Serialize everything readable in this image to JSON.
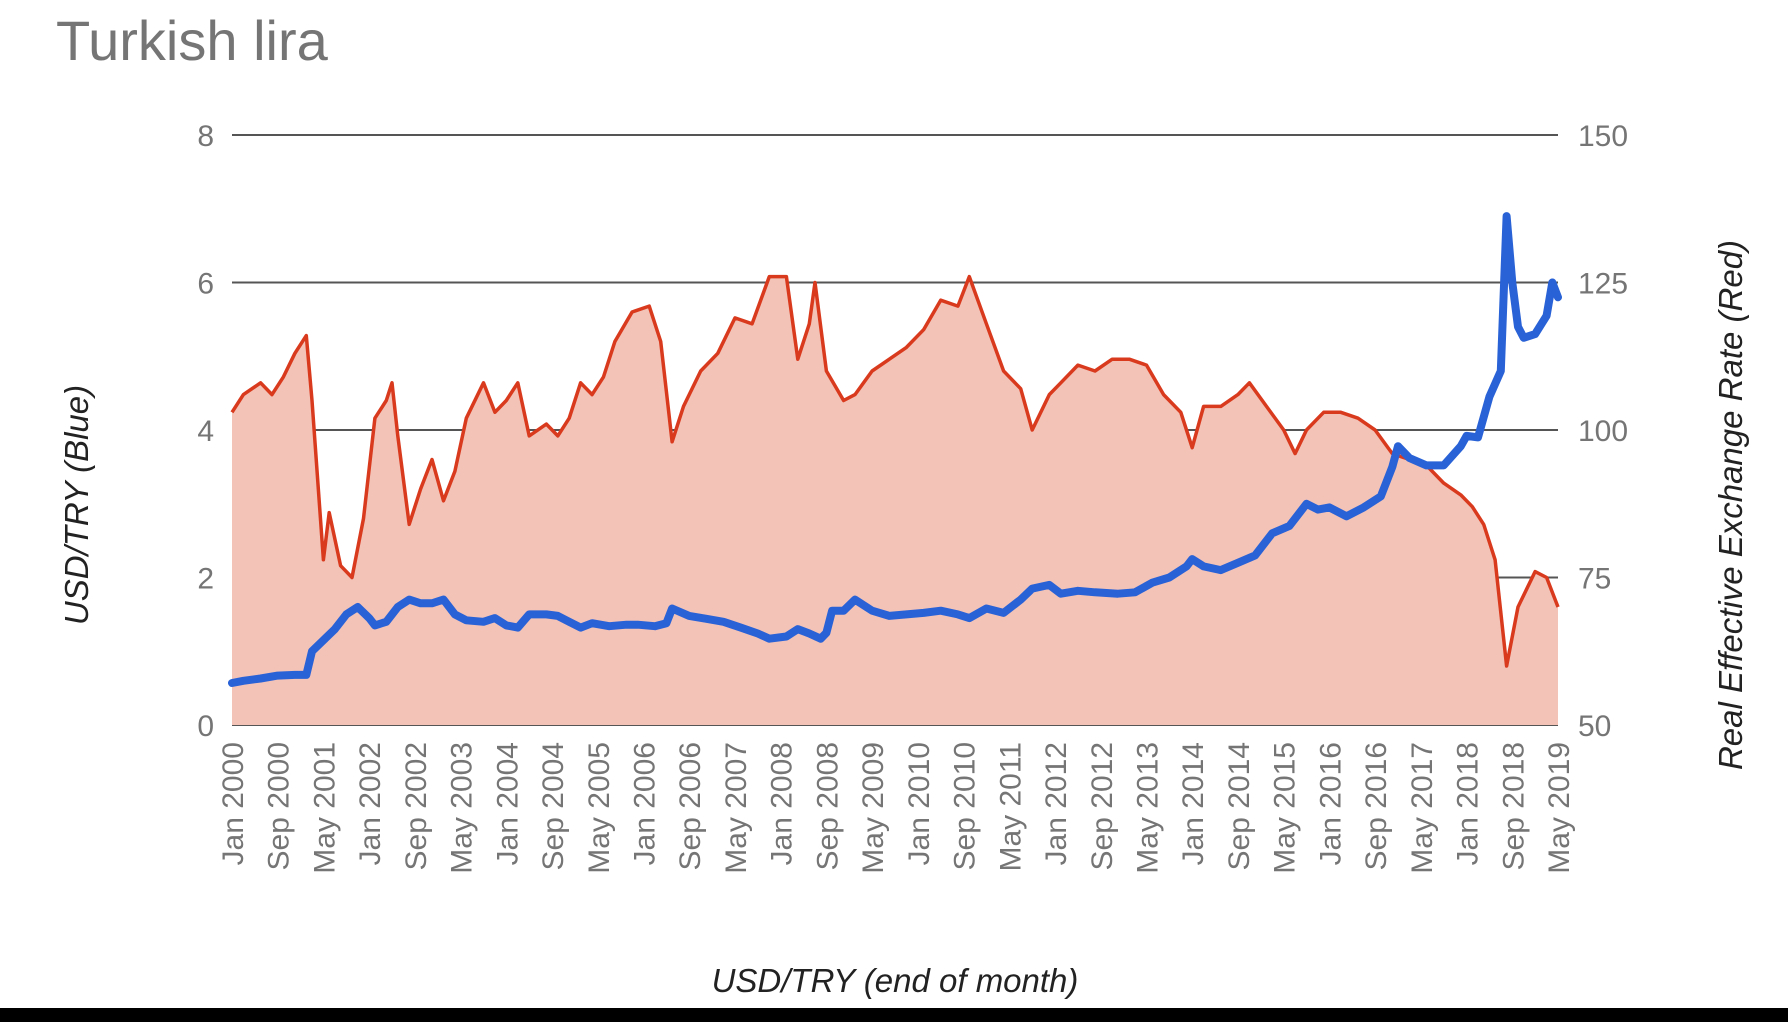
{
  "chart_data": {
    "type": "line",
    "title": "Turkish lira",
    "xlabel": "USD/TRY (end of month)",
    "ylabel_left": "USD/TRY (Blue)",
    "ylabel_right": "Real Effective Exchange Rate (Red)",
    "x_range": [
      "Jan 2000",
      "May 2019"
    ],
    "ylim_left": [
      0,
      8
    ],
    "ylim_right": [
      50,
      150
    ],
    "yticks_left": [
      "0",
      "2",
      "4",
      "6",
      "8"
    ],
    "yticks_right": [
      "50",
      "75",
      "100",
      "125",
      "150"
    ],
    "xticks": [
      "Jan 2000",
      "Sep 2000",
      "May 2001",
      "Jan 2002",
      "Sep 2002",
      "May 2003",
      "Jan 2004",
      "Sep 2004",
      "May 2005",
      "Jan 2006",
      "Sep 2006",
      "May 2007",
      "Jan 2008",
      "Sep 2008",
      "May 2009",
      "Jan 2010",
      "Sep 2010",
      "May 2011",
      "Jan 2012",
      "Sep 2012",
      "May 2013",
      "Jan 2014",
      "Sep 2014",
      "May 2015",
      "Jan 2016",
      "Sep 2016",
      "May 2017",
      "Jan 2018",
      "Sep 2018",
      "May 2019"
    ],
    "grid": true,
    "legend": "none",
    "series": [
      {
        "axis": "left",
        "color": "#2962d6",
        "style": "line-thick",
        "points": [
          [
            "2000-01",
            0.57
          ],
          [
            "2000-03",
            0.6
          ],
          [
            "2000-06",
            0.63
          ],
          [
            "2000-09",
            0.67
          ],
          [
            "2000-12",
            0.68
          ],
          [
            "2001-02",
            0.68
          ],
          [
            "2001-03",
            1.0
          ],
          [
            "2001-05",
            1.15
          ],
          [
            "2001-07",
            1.3
          ],
          [
            "2001-09",
            1.5
          ],
          [
            "2001-11",
            1.6
          ],
          [
            "2002-01",
            1.45
          ],
          [
            "2002-02",
            1.35
          ],
          [
            "2002-04",
            1.4
          ],
          [
            "2002-06",
            1.6
          ],
          [
            "2002-08",
            1.7
          ],
          [
            "2002-10",
            1.65
          ],
          [
            "2002-12",
            1.65
          ],
          [
            "2003-02",
            1.7
          ],
          [
            "2003-04",
            1.5
          ],
          [
            "2003-06",
            1.42
          ],
          [
            "2003-09",
            1.4
          ],
          [
            "2003-11",
            1.45
          ],
          [
            "2004-01",
            1.35
          ],
          [
            "2004-03",
            1.32
          ],
          [
            "2004-05",
            1.5
          ],
          [
            "2004-08",
            1.5
          ],
          [
            "2004-10",
            1.48
          ],
          [
            "2004-12",
            1.4
          ],
          [
            "2005-02",
            1.32
          ],
          [
            "2005-04",
            1.38
          ],
          [
            "2005-07",
            1.34
          ],
          [
            "2005-10",
            1.36
          ],
          [
            "2005-12",
            1.36
          ],
          [
            "2006-03",
            1.34
          ],
          [
            "2006-05",
            1.38
          ],
          [
            "2006-06",
            1.58
          ],
          [
            "2006-09",
            1.48
          ],
          [
            "2006-12",
            1.44
          ],
          [
            "2007-03",
            1.4
          ],
          [
            "2007-06",
            1.32
          ],
          [
            "2007-09",
            1.24
          ],
          [
            "2007-11",
            1.17
          ],
          [
            "2008-02",
            1.2
          ],
          [
            "2008-04",
            1.3
          ],
          [
            "2008-06",
            1.24
          ],
          [
            "2008-08",
            1.17
          ],
          [
            "2008-09",
            1.25
          ],
          [
            "2008-10",
            1.55
          ],
          [
            "2008-12",
            1.55
          ],
          [
            "2009-02",
            1.7
          ],
          [
            "2009-05",
            1.55
          ],
          [
            "2009-08",
            1.48
          ],
          [
            "2009-11",
            1.5
          ],
          [
            "2010-02",
            1.52
          ],
          [
            "2010-05",
            1.55
          ],
          [
            "2010-08",
            1.5
          ],
          [
            "2010-10",
            1.45
          ],
          [
            "2011-01",
            1.58
          ],
          [
            "2011-04",
            1.52
          ],
          [
            "2011-07",
            1.7
          ],
          [
            "2011-09",
            1.85
          ],
          [
            "2011-12",
            1.9
          ],
          [
            "2012-02",
            1.78
          ],
          [
            "2012-05",
            1.82
          ],
          [
            "2012-08",
            1.8
          ],
          [
            "2012-12",
            1.78
          ],
          [
            "2013-03",
            1.8
          ],
          [
            "2013-06",
            1.93
          ],
          [
            "2013-09",
            2.0
          ],
          [
            "2013-12",
            2.15
          ],
          [
            "2014-01",
            2.25
          ],
          [
            "2014-03",
            2.15
          ],
          [
            "2014-06",
            2.1
          ],
          [
            "2014-09",
            2.2
          ],
          [
            "2014-12",
            2.3
          ],
          [
            "2015-03",
            2.6
          ],
          [
            "2015-06",
            2.7
          ],
          [
            "2015-09",
            3.0
          ],
          [
            "2015-11",
            2.92
          ],
          [
            "2016-01",
            2.95
          ],
          [
            "2016-04",
            2.83
          ],
          [
            "2016-07",
            2.95
          ],
          [
            "2016-10",
            3.1
          ],
          [
            "2016-12",
            3.5
          ],
          [
            "2017-01",
            3.78
          ],
          [
            "2017-03",
            3.62
          ],
          [
            "2017-06",
            3.52
          ],
          [
            "2017-09",
            3.52
          ],
          [
            "2017-12",
            3.78
          ],
          [
            "2018-01",
            3.92
          ],
          [
            "2018-03",
            3.9
          ],
          [
            "2018-05",
            4.45
          ],
          [
            "2018-07",
            4.8
          ],
          [
            "2018-08",
            6.9
          ],
          [
            "2018-09",
            6.0
          ],
          [
            "2018-10",
            5.4
          ],
          [
            "2018-11",
            5.25
          ],
          [
            "2019-01",
            5.3
          ],
          [
            "2019-03",
            5.55
          ],
          [
            "2019-04",
            6.0
          ],
          [
            "2019-05",
            5.8
          ]
        ]
      },
      {
        "axis": "right",
        "color": "#d93a1e",
        "fill": "#f3c3b8",
        "style": "area",
        "points": [
          [
            "2000-01",
            103
          ],
          [
            "2000-03",
            106
          ],
          [
            "2000-06",
            108
          ],
          [
            "2000-08",
            106
          ],
          [
            "2000-10",
            109
          ],
          [
            "2000-12",
            113
          ],
          [
            "2001-02",
            116
          ],
          [
            "2001-03",
            105
          ],
          [
            "2001-05",
            78
          ],
          [
            "2001-06",
            86
          ],
          [
            "2001-08",
            77
          ],
          [
            "2001-10",
            75
          ],
          [
            "2001-12",
            85
          ],
          [
            "2002-02",
            102
          ],
          [
            "2002-04",
            105
          ],
          [
            "2002-05",
            108
          ],
          [
            "2002-06",
            99
          ],
          [
            "2002-08",
            84
          ],
          [
            "2002-10",
            90
          ],
          [
            "2002-12",
            95
          ],
          [
            "2003-02",
            88
          ],
          [
            "2003-04",
            93
          ],
          [
            "2003-06",
            102
          ],
          [
            "2003-09",
            108
          ],
          [
            "2003-11",
            103
          ],
          [
            "2004-01",
            105
          ],
          [
            "2004-03",
            108
          ],
          [
            "2004-05",
            99
          ],
          [
            "2004-08",
            101
          ],
          [
            "2004-10",
            99
          ],
          [
            "2004-12",
            102
          ],
          [
            "2005-02",
            108
          ],
          [
            "2005-04",
            106
          ],
          [
            "2005-06",
            109
          ],
          [
            "2005-08",
            115
          ],
          [
            "2005-11",
            120
          ],
          [
            "2006-02",
            121
          ],
          [
            "2006-04",
            115
          ],
          [
            "2006-06",
            98
          ],
          [
            "2006-08",
            104
          ],
          [
            "2006-11",
            110
          ],
          [
            "2007-02",
            113
          ],
          [
            "2007-05",
            119
          ],
          [
            "2007-08",
            118
          ],
          [
            "2007-11",
            126
          ],
          [
            "2008-02",
            126
          ],
          [
            "2008-04",
            112
          ],
          [
            "2008-06",
            118
          ],
          [
            "2008-07",
            125
          ],
          [
            "2008-09",
            110
          ],
          [
            "2008-12",
            105
          ],
          [
            "2009-02",
            106
          ],
          [
            "2009-05",
            110
          ],
          [
            "2009-08",
            112
          ],
          [
            "2009-11",
            114
          ],
          [
            "2010-02",
            117
          ],
          [
            "2010-05",
            122
          ],
          [
            "2010-08",
            121
          ],
          [
            "2010-10",
            126
          ],
          [
            "2011-01",
            118
          ],
          [
            "2011-04",
            110
          ],
          [
            "2011-07",
            107
          ],
          [
            "2011-09",
            100
          ],
          [
            "2011-12",
            106
          ],
          [
            "2012-02",
            108
          ],
          [
            "2012-05",
            111
          ],
          [
            "2012-08",
            110
          ],
          [
            "2012-11",
            112
          ],
          [
            "2013-02",
            112
          ],
          [
            "2013-05",
            111
          ],
          [
            "2013-08",
            106
          ],
          [
            "2013-11",
            103
          ],
          [
            "2014-01",
            97
          ],
          [
            "2014-03",
            104
          ],
          [
            "2014-06",
            104
          ],
          [
            "2014-09",
            106
          ],
          [
            "2014-11",
            108
          ],
          [
            "2015-02",
            104
          ],
          [
            "2015-05",
            100
          ],
          [
            "2015-07",
            96
          ],
          [
            "2015-09",
            100
          ],
          [
            "2015-12",
            103
          ],
          [
            "2016-03",
            103
          ],
          [
            "2016-06",
            102
          ],
          [
            "2016-09",
            100
          ],
          [
            "2016-12",
            96
          ],
          [
            "2017-03",
            95
          ],
          [
            "2017-06",
            94
          ],
          [
            "2017-09",
            91
          ],
          [
            "2017-12",
            89
          ],
          [
            "2018-02",
            87
          ],
          [
            "2018-04",
            84
          ],
          [
            "2018-06",
            78
          ],
          [
            "2018-08",
            60
          ],
          [
            "2018-10",
            70
          ],
          [
            "2019-01",
            76
          ],
          [
            "2019-03",
            75
          ],
          [
            "2019-05",
            70
          ]
        ]
      }
    ]
  }
}
